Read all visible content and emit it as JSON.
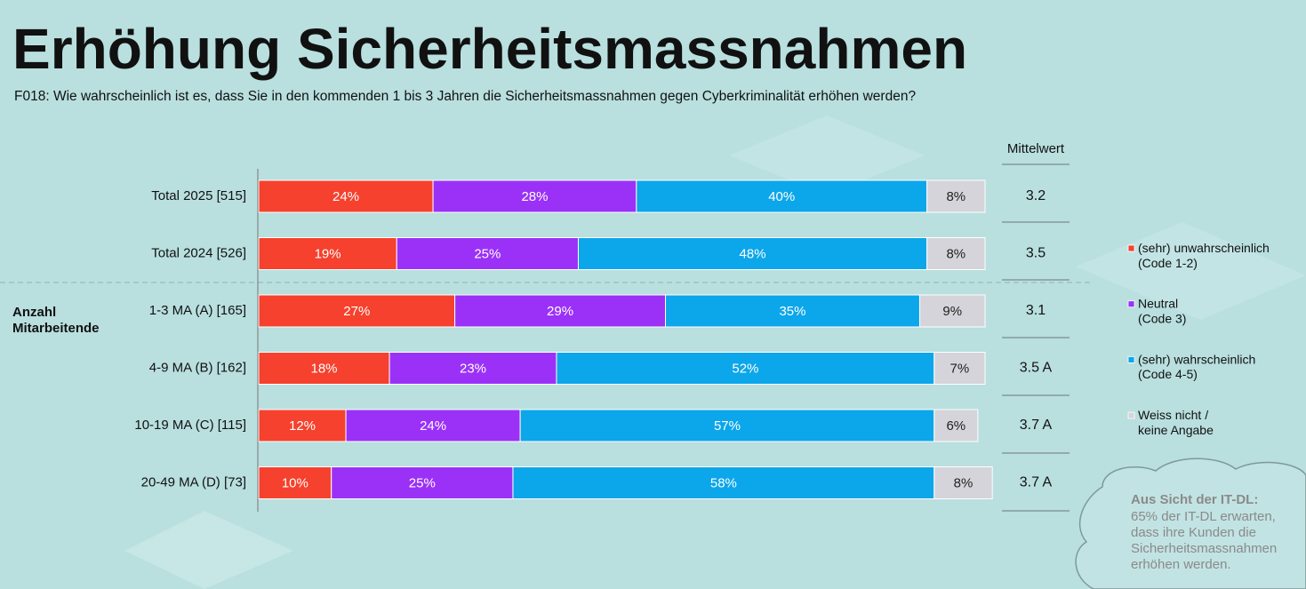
{
  "chart_data": {
    "type": "stacked-bar-horizontal",
    "title": "Erhöhung Sicherheitsmassnahmen",
    "subtitle": "F018: Wie wahrscheinlich ist es, dass Sie in den kommenden 1 bis 3 Jahren die Sicherheitsmassnahmen gegen Cyberkriminalität erhöhen werden?",
    "group_label": "Anzahl\nMitarbeitende",
    "categories": [
      "Total 2025 [515]",
      "Total 2024 [526]",
      "1-3 MA (A) [165]",
      "4-9 MA (B) [162]",
      "10-19 MA (C) [115]",
      "20-49 MA (D) [73]"
    ],
    "series": [
      {
        "name": "(sehr) unwahrscheinlich\n(Code 1-2)",
        "color": "#f5412d",
        "values": [
          24,
          19,
          27,
          18,
          12,
          10
        ],
        "value_labels": [
          "24%",
          "19%",
          "27%",
          "18%",
          "12%",
          "10%"
        ]
      },
      {
        "name": "Neutral\n(Code 3)",
        "color": "#9b31f7",
        "values": [
          28,
          25,
          29,
          23,
          24,
          25
        ],
        "value_labels": [
          "28%",
          "25%",
          "29%",
          "23%",
          "24%",
          "25%"
        ]
      },
      {
        "name": "(sehr) wahrscheinlich\n(Code 4-5)",
        "color": "#0ca6ea",
        "values": [
          40,
          48,
          35,
          52,
          57,
          58
        ],
        "value_labels": [
          "40%",
          "48%",
          "35%",
          "52%",
          "57%",
          "58%"
        ]
      },
      {
        "name": "Weiss nicht /\nkeine Angabe",
        "color": "#d4d4da",
        "values": [
          8,
          8,
          9,
          7,
          6,
          8
        ],
        "value_labels": [
          "8%",
          "8%",
          "9%",
          "7%",
          "6%",
          "8%"
        ]
      }
    ],
    "mean_title": "Mittelwert",
    "mean_labels": [
      "3.2",
      "3.5",
      "3.1",
      "3.5 A",
      "3.7 A",
      "3.7 A"
    ],
    "note": {
      "title": "Aus Sicht der IT-DL:",
      "text": "65% der IT-DL erwarten,\ndass ihre Kunden die\nSicherheitsmassnahmen\nerhöhen werden."
    }
  }
}
